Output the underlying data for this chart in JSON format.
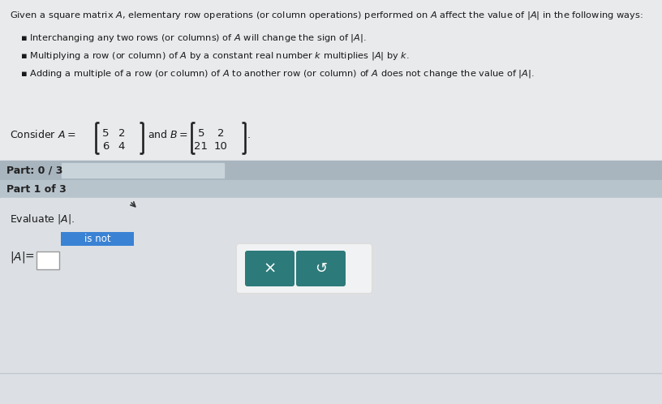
{
  "bg_color": "#dce0e4",
  "top_bg": "#e8eaec",
  "header_line1": "Given a square matrix $A$, elementary row operations (or column operations) performed on $A$ affect the value of $|A|$ in the following ways:",
  "bullet1": "Interchanging any two rows (or columns) of $A$ will change the sign of $|A|$.",
  "bullet2": "Multiplying a row (or column) of $A$ by a constant real number $k$ multiplies $|A|$ by $k$.",
  "bullet3": "Adding a multiple of a row (or column) of $A$ to another row (or column) of $A$ does not change the value of $|A|$.",
  "matrix_A": [
    [
      "5",
      "2"
    ],
    [
      "6",
      "4"
    ]
  ],
  "matrix_B": [
    [
      "5",
      "2"
    ],
    [
      "21",
      "10"
    ]
  ],
  "part_bar_bg": "#a8b4be",
  "part_bar_text": "Part: 0 / 3",
  "progress_bar_bg": "#c8d4da",
  "part1_bg": "#b8c4cc",
  "part1_text": "Part 1 of 3",
  "main_bg": "#dce0e4",
  "evaluate_text": "Evaluate $|A|$.",
  "is_not_bg": "#3a82d4",
  "is_not_text": "is not",
  "det_label_left": "$|A|$",
  "det_label_eq": " $=$",
  "button_bg": "#2d7a7a",
  "button_x_text": "×",
  "button_s_text": "↺",
  "btn_border_color": "#ffffff"
}
